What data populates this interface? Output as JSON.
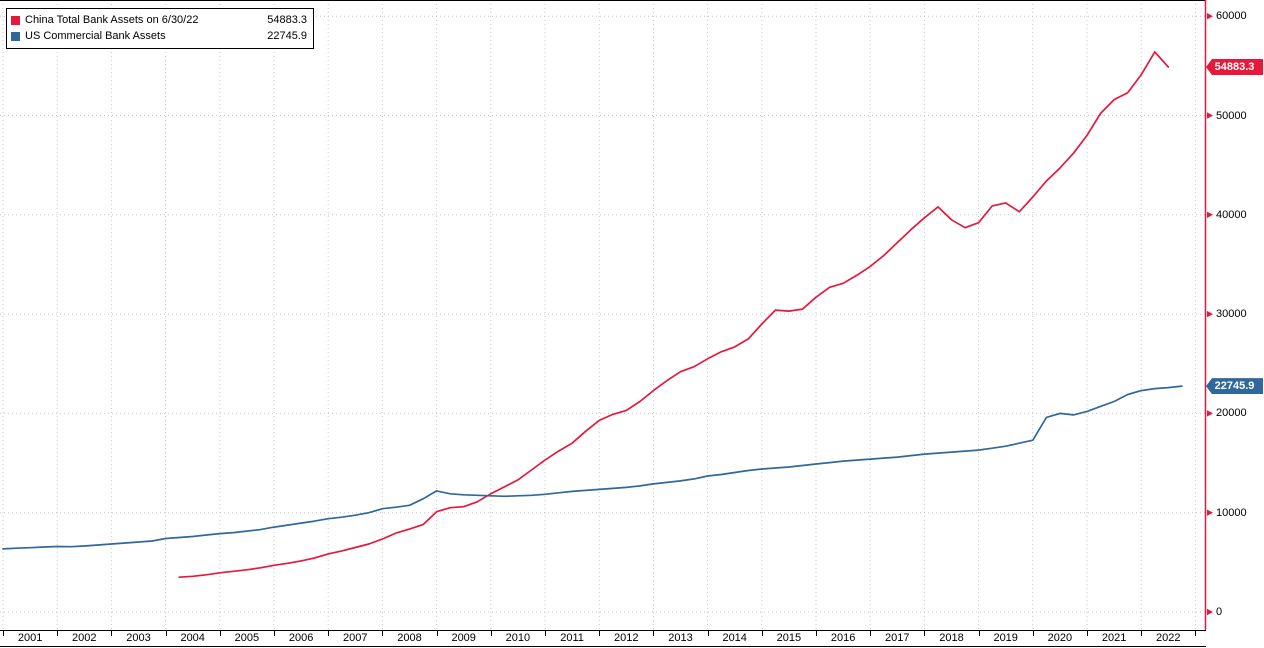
{
  "colors": {
    "background": "#ffffff",
    "grid": "#c6c6c6",
    "axis": "#e4193b",
    "text": "#000000",
    "china_red": "#e4193b",
    "us_blue": "#30689c"
  },
  "chart_data": {
    "type": "line",
    "title": "",
    "xlabel": "",
    "ylabel": "",
    "x_range": [
      2001,
      2023
    ],
    "ylim": [
      0,
      60000
    ],
    "grid": "dotted",
    "legend_position": "top-left",
    "y_ticks": [
      0,
      10000,
      20000,
      30000,
      40000,
      50000,
      60000
    ],
    "x_ticks_years": [
      "2001",
      "2002",
      "2003",
      "2004",
      "2005",
      "2006",
      "2007",
      "2008",
      "2009",
      "2010",
      "2011",
      "2012",
      "2013",
      "2014",
      "2015",
      "2016",
      "2017",
      "2018",
      "2019",
      "2020",
      "2021",
      "2022"
    ],
    "series": [
      {
        "id": "china",
        "name": "China Total Bank Assets on 6/30/22",
        "color": "#e4193b",
        "end_label": "54883.3",
        "x": [
          2004.25,
          2004.5,
          2004.75,
          2005,
          2005.25,
          2005.5,
          2005.75,
          2006,
          2006.25,
          2006.5,
          2006.75,
          2007,
          2007.25,
          2007.5,
          2007.75,
          2008,
          2008.25,
          2008.5,
          2008.75,
          2009,
          2009.25,
          2009.5,
          2009.75,
          2010,
          2010.25,
          2010.5,
          2010.75,
          2011,
          2011.25,
          2011.5,
          2011.75,
          2012,
          2012.25,
          2012.5,
          2012.75,
          2013,
          2013.25,
          2013.5,
          2013.75,
          2014,
          2014.25,
          2014.5,
          2014.75,
          2015,
          2015.25,
          2015.5,
          2015.75,
          2016,
          2016.25,
          2016.5,
          2016.75,
          2017,
          2017.25,
          2017.5,
          2017.75,
          2018,
          2018.25,
          2018.5,
          2018.75,
          2019,
          2019.25,
          2019.5,
          2019.75,
          2020,
          2020.25,
          2020.5,
          2020.75,
          2021,
          2021.25,
          2021.5,
          2021.75,
          2022,
          2022.25,
          2022.5
        ],
        "values": [
          3500,
          3600,
          3750,
          3950,
          4100,
          4250,
          4450,
          4700,
          4900,
          5150,
          5450,
          5850,
          6150,
          6500,
          6850,
          7350,
          7950,
          8350,
          8800,
          10100,
          10500,
          10600,
          11100,
          11900,
          12600,
          13300,
          14300,
          15300,
          16200,
          17000,
          18200,
          19300,
          19900,
          20300,
          21200,
          22300,
          23300,
          24200,
          24700,
          25500,
          26200,
          26700,
          27500,
          29000,
          30400,
          30300,
          30500,
          31700,
          32700,
          33100,
          33900,
          34800,
          35900,
          37200,
          38500,
          39700,
          40800,
          39500,
          38700,
          39200,
          40900,
          41200,
          40300,
          41800,
          43400,
          44700,
          46200,
          48000,
          50200,
          51600,
          52300,
          54100,
          56400,
          54883.3
        ]
      },
      {
        "id": "us",
        "name": "US Commercial Bank Assets",
        "color": "#30689c",
        "end_label": "22745.9",
        "x": [
          2001,
          2001.25,
          2001.5,
          2001.75,
          2002,
          2002.25,
          2002.5,
          2002.75,
          2003,
          2003.25,
          2003.5,
          2003.75,
          2004,
          2004.25,
          2004.5,
          2004.75,
          2005,
          2005.25,
          2005.5,
          2005.75,
          2006,
          2006.25,
          2006.5,
          2006.75,
          2007,
          2007.25,
          2007.5,
          2007.75,
          2008,
          2008.25,
          2008.5,
          2008.75,
          2009,
          2009.25,
          2009.5,
          2009.75,
          2010,
          2010.25,
          2010.5,
          2010.75,
          2011,
          2011.25,
          2011.5,
          2011.75,
          2012,
          2012.25,
          2012.5,
          2012.75,
          2013,
          2013.25,
          2013.5,
          2013.75,
          2014,
          2014.25,
          2014.5,
          2014.75,
          2015,
          2015.25,
          2015.5,
          2015.75,
          2016,
          2016.25,
          2016.5,
          2016.75,
          2017,
          2017.25,
          2017.5,
          2017.75,
          2018,
          2018.25,
          2018.5,
          2018.75,
          2019,
          2019.25,
          2019.5,
          2019.75,
          2020,
          2020.25,
          2020.5,
          2020.75,
          2021,
          2021.25,
          2021.5,
          2021.75,
          2022,
          2022.25,
          2022.5,
          2022.75
        ],
        "values": [
          6350,
          6420,
          6480,
          6550,
          6600,
          6580,
          6650,
          6750,
          6850,
          6950,
          7050,
          7150,
          7400,
          7500,
          7600,
          7750,
          7900,
          8000,
          8150,
          8300,
          8550,
          8750,
          8950,
          9150,
          9400,
          9550,
          9750,
          10000,
          10400,
          10550,
          10750,
          11400,
          12200,
          11900,
          11800,
          11750,
          11700,
          11650,
          11700,
          11750,
          11850,
          12000,
          12150,
          12250,
          12350,
          12450,
          12550,
          12700,
          12900,
          13050,
          13200,
          13400,
          13700,
          13850,
          14050,
          14250,
          14400,
          14500,
          14600,
          14750,
          14900,
          15050,
          15200,
          15300,
          15400,
          15500,
          15600,
          15750,
          15900,
          16000,
          16100,
          16200,
          16300,
          16500,
          16700,
          17000,
          17300,
          19600,
          20000,
          19850,
          20200,
          20700,
          21200,
          21900,
          22300,
          22500,
          22600,
          22745.9
        ]
      }
    ]
  }
}
